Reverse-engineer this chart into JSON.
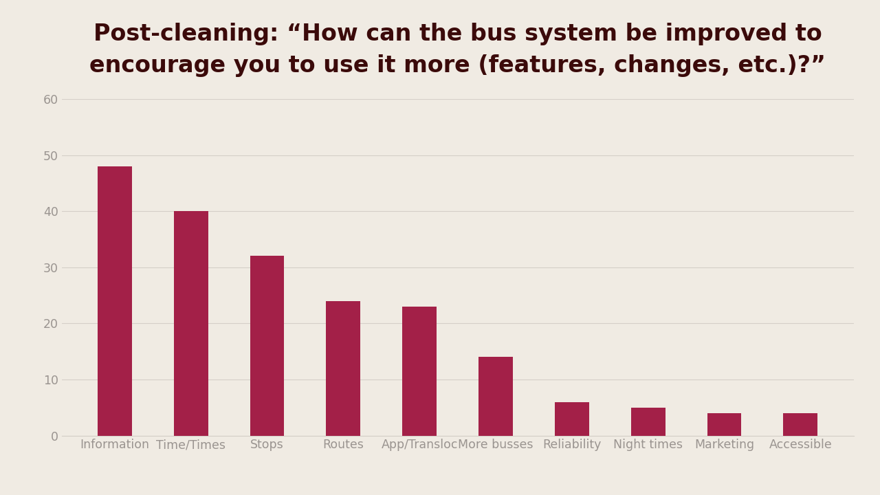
{
  "title_line1": "Post-cleaning: “How can the bus system be improved to",
  "title_line2": "encourage you to use it more (features, changes, etc.)?”",
  "categories": [
    "Information",
    "Time/Times",
    "Stops",
    "Routes",
    "App/Transloc",
    "More busses",
    "Reliability",
    "Night times",
    "Marketing",
    "Accessible"
  ],
  "values": [
    48,
    40,
    32,
    24,
    23,
    14,
    6,
    5,
    4,
    4
  ],
  "bar_color": "#A32048",
  "background_color": "#F0EBE3",
  "title_color": "#3B0A0A",
  "tick_label_color": "#9A9490",
  "grid_color": "#D5CFC8",
  "ylim": [
    0,
    60
  ],
  "yticks": [
    0,
    10,
    20,
    30,
    40,
    50,
    60
  ],
  "title_fontsize": 24,
  "tick_fontsize": 12.5,
  "bar_width": 0.45
}
